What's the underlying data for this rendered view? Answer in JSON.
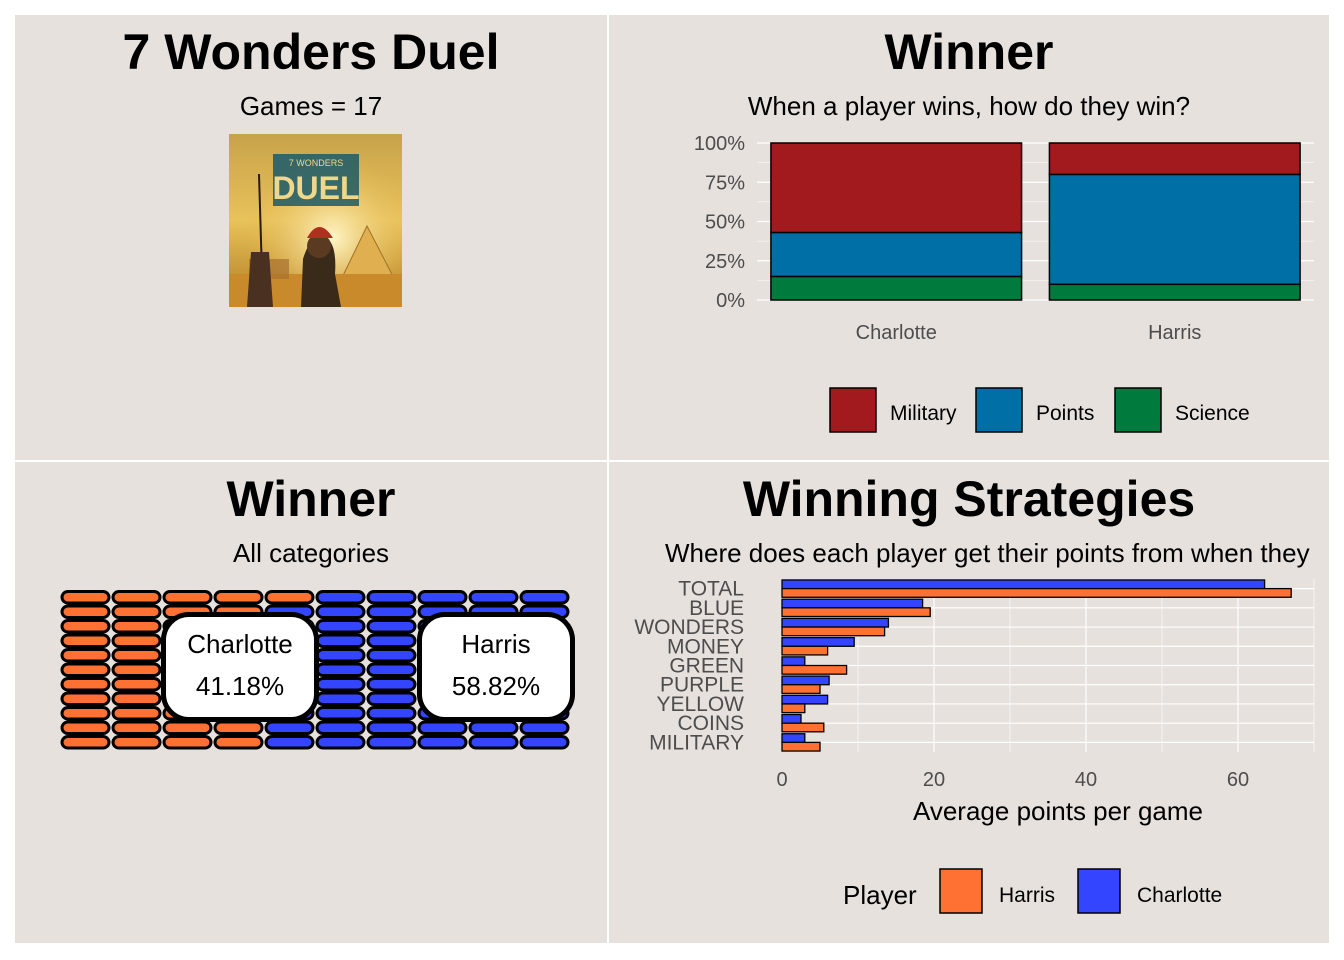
{
  "panel1": {
    "title": "7 Wonders Duel",
    "subtitle": "Games = 17",
    "box_art": {
      "logo_small": "7 WONDERS",
      "logo_big": "DUEL"
    }
  },
  "panel2": {
    "title": "Winner",
    "subtitle": "When a player wins, how do they win?"
  },
  "panel3": {
    "title": "Winner",
    "subtitle": "All categories",
    "players": [
      {
        "name": "Charlotte",
        "pct": "41.18%",
        "fraction": 0.4118,
        "color": "#ff7133"
      },
      {
        "name": "Harris",
        "pct": "58.82%",
        "fraction": 0.5882,
        "color": "#3345ff"
      }
    ]
  },
  "panel4": {
    "title": "Winning Strategies",
    "subtitle": "Where does each player get their points from when they"
  },
  "chart_data": [
    {
      "type": "bar",
      "stacked": "percent",
      "categories": [
        "Charlotte",
        "Harris"
      ],
      "series": [
        {
          "name": "Military",
          "color": "#a31a1e",
          "values": [
            0.57,
            0.2
          ]
        },
        {
          "name": "Points",
          "color": "#006fa6",
          "values": [
            0.28,
            0.7
          ]
        },
        {
          "name": "Science",
          "color": "#007a3d",
          "values": [
            0.15,
            0.1
          ]
        }
      ],
      "ylim": [
        0,
        1
      ],
      "yticks": [
        "0%",
        "25%",
        "50%",
        "75%",
        "100%"
      ],
      "legend": "bottom",
      "grid": true
    },
    {
      "type": "bar",
      "orientation": "horizontal",
      "categories": [
        "TOTAL",
        "BLUE",
        "WONDERS",
        "MONEY",
        "GREEN",
        "PURPLE",
        "YELLOW",
        "COINS",
        "MILITARY"
      ],
      "series": [
        {
          "name": "Charlotte",
          "color": "#3345ff",
          "values": [
            63.5,
            18.5,
            14.0,
            9.5,
            3.0,
            6.2,
            6.0,
            2.5,
            3.0
          ]
        },
        {
          "name": "Harris",
          "color": "#ff7133",
          "values": [
            67.0,
            19.5,
            13.5,
            6.0,
            8.5,
            5.0,
            3.0,
            5.5,
            5.0
          ]
        }
      ],
      "xlabel": "Average points per game",
      "xlim": [
        0,
        70
      ],
      "xticks": [
        0,
        20,
        40,
        60
      ],
      "legend_title": "Player",
      "legend_order": [
        "Harris",
        "Charlotte"
      ],
      "legend": "bottom",
      "grid": true
    }
  ]
}
